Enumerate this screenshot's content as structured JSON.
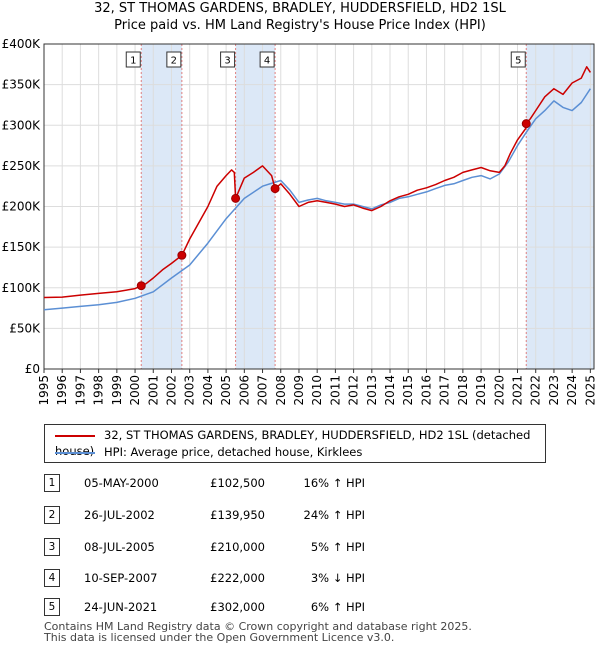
{
  "title_line1": "32, ST THOMAS GARDENS, BRADLEY, HUDDERSFIELD, HD2 1SL",
  "title_line2": "Price paid vs. HM Land Registry's House Price Index (HPI)",
  "colors": {
    "red": "#cc0000",
    "blue": "#5b8fd4",
    "shade": "#dce8f7",
    "grid": "#dddddd",
    "marker_line": "#e08080"
  },
  "chart_data": {
    "type": "line",
    "xlim": [
      1995,
      2025.2
    ],
    "ylim": [
      0,
      400000
    ],
    "x_ticks": [
      "1995",
      "1996",
      "1997",
      "1998",
      "1999",
      "2000",
      "2001",
      "2002",
      "2003",
      "2004",
      "2005",
      "2006",
      "2007",
      "2008",
      "2009",
      "2010",
      "2011",
      "2012",
      "2013",
      "2014",
      "2015",
      "2016",
      "2017",
      "2018",
      "2019",
      "2020",
      "2021",
      "2022",
      "2023",
      "2024",
      "2025"
    ],
    "y_ticks": [
      {
        "value": 0,
        "label": "£0"
      },
      {
        "value": 50000,
        "label": "£50K"
      },
      {
        "value": 100000,
        "label": "£100K"
      },
      {
        "value": 150000,
        "label": "£150K"
      },
      {
        "value": 200000,
        "label": "£200K"
      },
      {
        "value": 250000,
        "label": "£250K"
      },
      {
        "value": 300000,
        "label": "£300K"
      },
      {
        "value": 350000,
        "label": "£350K"
      },
      {
        "value": 400000,
        "label": "£400K"
      }
    ],
    "shaded_ranges": [
      [
        2000.34,
        2002.57
      ],
      [
        2005.52,
        2007.69
      ],
      [
        2021.48,
        2025.2
      ]
    ],
    "series": [
      {
        "name": "32, ST THOMAS GARDENS, BRADLEY, HUDDERSFIELD, HD2 1SL (detached house)",
        "color": "#cc0000",
        "x": [
          1995,
          1996,
          1997,
          1998,
          1999,
          2000.0,
          2000.34,
          2000.6,
          2001,
          2001.5,
          2002,
          2002.57,
          2003,
          2003.5,
          2004,
          2004.5,
          2005,
          2005.3,
          2005.45,
          2005.52,
          2006,
          2006.5,
          2007,
          2007.5,
          2007.69,
          2008,
          2008.5,
          2009,
          2009.5,
          2010,
          2010.5,
          2011,
          2011.5,
          2012,
          2012.5,
          2013,
          2013.5,
          2014,
          2014.5,
          2015,
          2015.5,
          2016,
          2016.5,
          2017,
          2017.5,
          2018,
          2018.5,
          2019,
          2019.5,
          2020,
          2020.3,
          2020.6,
          2021,
          2021.45,
          2021.48,
          2021.7,
          2022,
          2022.5,
          2023,
          2023.5,
          2024,
          2024.5,
          2024.8,
          2025
        ],
        "y": [
          88000,
          88500,
          91000,
          93000,
          95000,
          99000,
          102500,
          105000,
          112000,
          122000,
          130000,
          139950,
          160000,
          180000,
          200000,
          225000,
          238000,
          245000,
          242000,
          210000,
          235000,
          242000,
          250000,
          238000,
          222000,
          228000,
          215000,
          200000,
          205000,
          207000,
          205000,
          203000,
          200000,
          202000,
          198000,
          195000,
          200000,
          207000,
          212000,
          215000,
          220000,
          223000,
          227000,
          232000,
          236000,
          242000,
          245000,
          248000,
          244000,
          242000,
          250000,
          265000,
          282000,
          296000,
          302000,
          308000,
          318000,
          335000,
          345000,
          338000,
          352000,
          358000,
          372000,
          365000
        ]
      },
      {
        "name": "HPI: Average price, detached house, Kirklees",
        "color": "#5b8fd4",
        "x": [
          1995,
          1996,
          1997,
          1998,
          1999,
          2000,
          2001,
          2002,
          2003,
          2004,
          2005,
          2006,
          2007,
          2007.7,
          2008,
          2008.5,
          2009,
          2009.5,
          2010,
          2010.5,
          2011,
          2011.5,
          2012,
          2012.5,
          2013,
          2013.5,
          2014,
          2014.5,
          2015,
          2015.5,
          2016,
          2016.5,
          2017,
          2017.5,
          2018,
          2018.5,
          2019,
          2019.5,
          2020,
          2020.5,
          2021,
          2021.5,
          2022,
          2022.5,
          2023,
          2023.5,
          2024,
          2024.5,
          2025
        ],
        "y": [
          73000,
          75000,
          77000,
          79000,
          82000,
          87000,
          95000,
          112000,
          128000,
          155000,
          185000,
          210000,
          225000,
          230000,
          232000,
          220000,
          205000,
          208000,
          210000,
          207000,
          205000,
          203000,
          203000,
          200000,
          197000,
          202000,
          205000,
          210000,
          212000,
          215000,
          218000,
          222000,
          226000,
          228000,
          232000,
          236000,
          238000,
          234000,
          240000,
          255000,
          275000,
          292000,
          308000,
          318000,
          330000,
          322000,
          318000,
          328000,
          345000
        ]
      }
    ],
    "sales": [
      {
        "label": "1",
        "x": 2000.34,
        "y": 102500
      },
      {
        "label": "2",
        "x": 2002.57,
        "y": 139950
      },
      {
        "label": "3",
        "x": 2005.52,
        "y": 210000
      },
      {
        "label": "4",
        "x": 2007.69,
        "y": 222000
      },
      {
        "label": "5",
        "x": 2021.48,
        "y": 302000
      }
    ]
  },
  "legend": {
    "red_label": "32, ST THOMAS GARDENS, BRADLEY, HUDDERSFIELD, HD2 1SL (detached house)",
    "blue_label": "HPI: Average price, detached house, Kirklees"
  },
  "transactions": [
    {
      "num": "1",
      "date": "05-MAY-2000",
      "price": "£102,500",
      "hpi": "16% ↑ HPI"
    },
    {
      "num": "2",
      "date": "26-JUL-2002",
      "price": "£139,950",
      "hpi": "24% ↑ HPI"
    },
    {
      "num": "3",
      "date": "08-JUL-2005",
      "price": "£210,000",
      "hpi": "5% ↑ HPI"
    },
    {
      "num": "4",
      "date": "10-SEP-2007",
      "price": "£222,000",
      "hpi": "3% ↓ HPI"
    },
    {
      "num": "5",
      "date": "24-JUN-2021",
      "price": "£302,000",
      "hpi": "6% ↑ HPI"
    }
  ],
  "footer": {
    "line1": "Contains HM Land Registry data © Crown copyright and database right 2025.",
    "line2": "This data is licensed under the Open Government Licence v3.0."
  }
}
